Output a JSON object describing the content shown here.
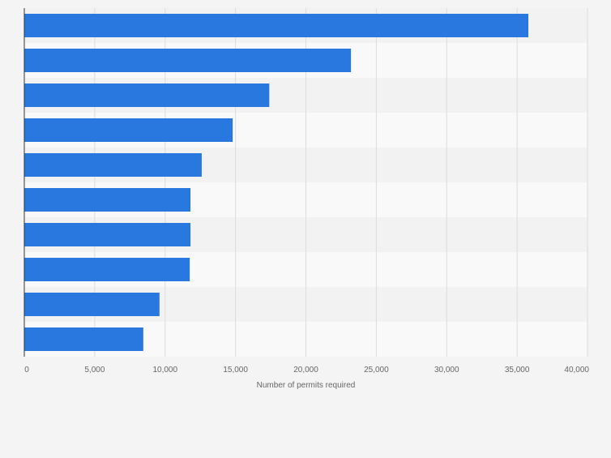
{
  "chart_data": {
    "type": "bar",
    "orientation": "horizontal",
    "categories": [
      "",
      "",
      "",
      "",
      "",
      "",
      "",
      "",
      "",
      ""
    ],
    "values": [
      35800,
      23200,
      17400,
      14800,
      12600,
      11800,
      11800,
      11750,
      9600,
      8450
    ],
    "xlabel": "Number of permits required",
    "ylabel": "",
    "xlim": [
      0,
      40000
    ],
    "xticks": [
      0,
      5000,
      10000,
      15000,
      20000,
      25000,
      30000,
      35000,
      40000
    ],
    "xtick_labels": [
      "0",
      "5,000",
      "10,000",
      "15,000",
      "20,000",
      "25,000",
      "30,000",
      "35,000",
      "40,000"
    ],
    "grid": "vertical",
    "colors": {
      "bar": "#2878df",
      "band_dark": "#f2f2f2",
      "band_light": "#f9f9f9",
      "gridline": "#dcdcdc",
      "axis_text": "#666666"
    }
  }
}
